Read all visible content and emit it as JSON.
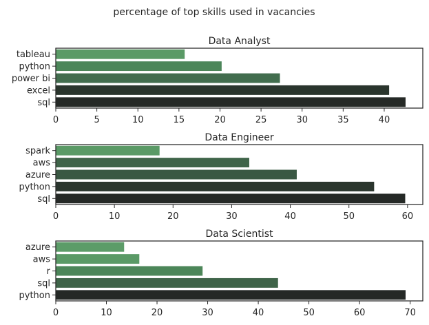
{
  "figure": {
    "suptitle": "percentage of top skills used in vacancies",
    "colors": {
      "text": "#262626",
      "frame": "#262626",
      "background": "#ffffff"
    }
  },
  "chart_data": [
    {
      "type": "bar",
      "orientation": "horizontal",
      "title": "Data Analyst",
      "xlabel": "",
      "ylabel": "",
      "categories": [
        "sql",
        "excel",
        "power bi",
        "python",
        "tableau"
      ],
      "values": [
        42.6,
        40.6,
        27.3,
        20.2,
        15.7
      ],
      "colors": [
        "#252926",
        "#2a352d",
        "#426d4e",
        "#4c8659",
        "#5a9a66"
      ],
      "xlim": [
        0,
        44.7
      ],
      "xticks": [
        0,
        5,
        10,
        15,
        20,
        25,
        30,
        35,
        40
      ],
      "grid": false,
      "legend": "none"
    },
    {
      "type": "bar",
      "orientation": "horizontal",
      "title": "Data Engineer",
      "xlabel": "",
      "ylabel": "",
      "categories": [
        "sql",
        "python",
        "azure",
        "aws",
        "spark"
      ],
      "values": [
        59.6,
        54.3,
        41.1,
        33.0,
        17.7
      ],
      "colors": [
        "#252926",
        "#2a352d",
        "#3a5843",
        "#3f6449",
        "#5a9a66"
      ],
      "xlim": [
        0,
        62.6
      ],
      "xticks": [
        0,
        10,
        20,
        30,
        40,
        50,
        60
      ],
      "grid": false,
      "legend": "none"
    },
    {
      "type": "bar",
      "orientation": "horizontal",
      "title": "Data Scientist",
      "xlabel": "",
      "ylabel": "",
      "categories": [
        "python",
        "sql",
        "r",
        "aws",
        "azure"
      ],
      "values": [
        69.1,
        43.9,
        29.0,
        16.5,
        13.5
      ],
      "colors": [
        "#252926",
        "#3f6449",
        "#4c8659",
        "#5a9a66",
        "#5c9c68"
      ],
      "xlim": [
        0,
        72.5
      ],
      "xticks": [
        0,
        10,
        20,
        30,
        40,
        50,
        60,
        70
      ],
      "grid": false,
      "legend": "none"
    }
  ]
}
